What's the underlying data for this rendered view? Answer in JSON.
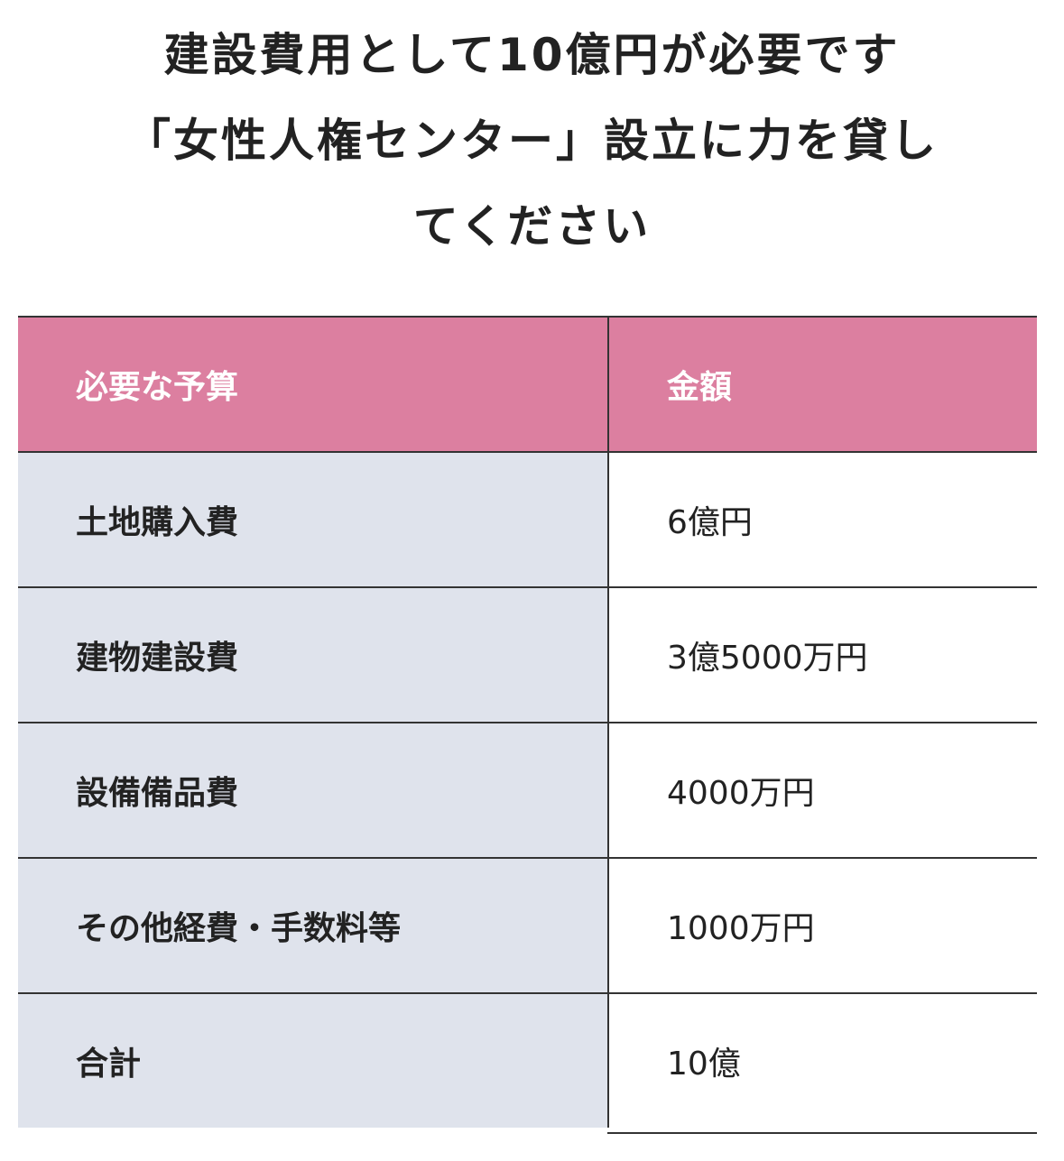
{
  "title": {
    "lines": [
      "建設費用として10億円が必要です",
      "「女性人権センター」設立に力を貸し",
      "てください"
    ]
  },
  "table": {
    "headers": [
      "必要な予算",
      "金額"
    ],
    "rows": [
      [
        "土地購入費",
        "6億円"
      ],
      [
        "建物建設費",
        "3億5000万円"
      ],
      [
        "設備備品費",
        "4000万円"
      ],
      [
        "その他経費・手数料等",
        "1000万円"
      ],
      [
        "合計",
        "10億"
      ]
    ],
    "colors": {
      "header": "#dc7fa0",
      "label_column": "#dfe3ec"
    }
  }
}
